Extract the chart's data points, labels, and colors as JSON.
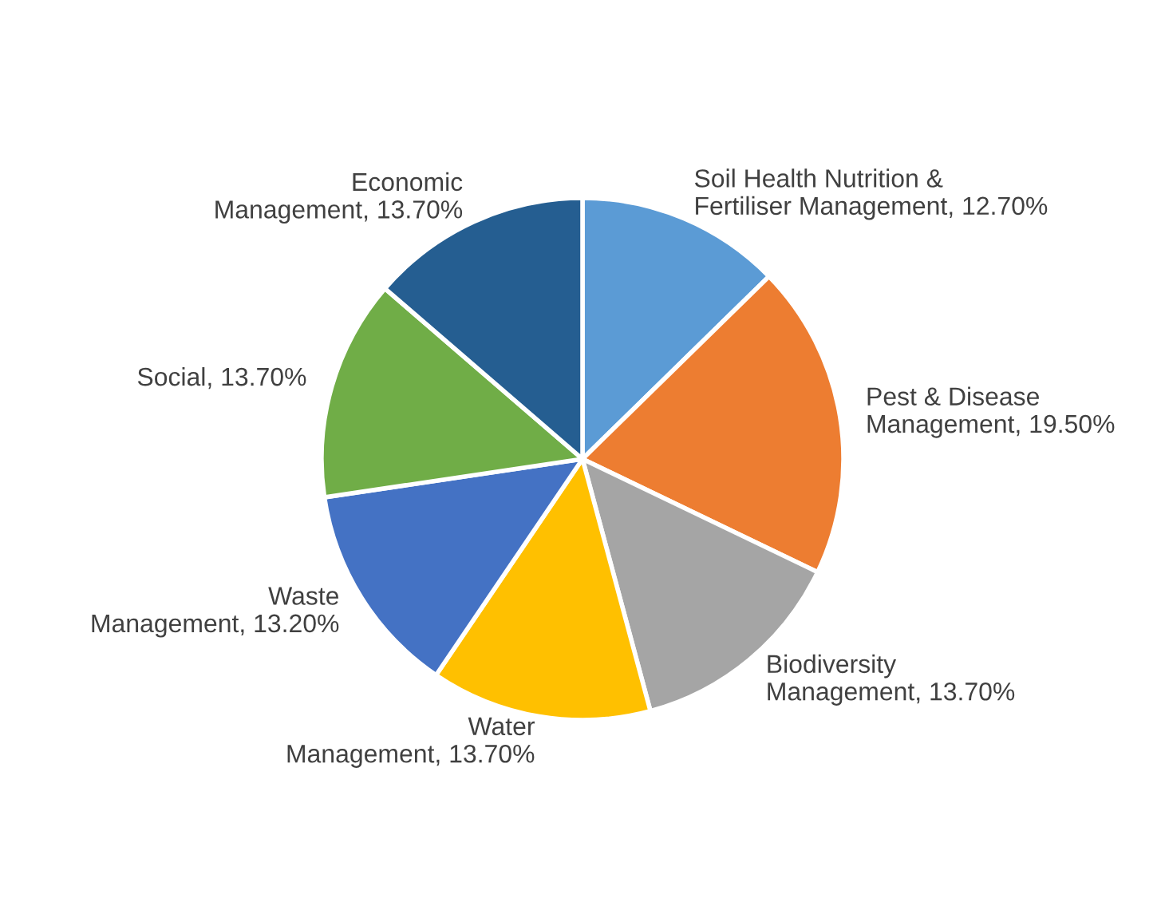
{
  "chart_data": {
    "type": "pie",
    "categories": [
      "Soil Health Nutrition &\nFertiliser Management",
      "Pest & Disease\nManagement",
      "Biodiversity\nManagement",
      "Water\nManagement",
      "Waste\nManagement",
      "Social",
      "Economic\nManagement"
    ],
    "values": [
      12.7,
      19.5,
      13.7,
      13.7,
      13.2,
      13.7,
      13.7
    ],
    "value_labels": [
      "12.70%",
      "19.50%",
      "13.70%",
      "13.70%",
      "13.20%",
      "13.70%",
      "13.70%"
    ],
    "colors": [
      "#5b9bd5",
      "#ed7d31",
      "#a5a5a5",
      "#ffc000",
      "#4472c4",
      "#70ad47",
      "#255e91"
    ],
    "legend": false
  }
}
